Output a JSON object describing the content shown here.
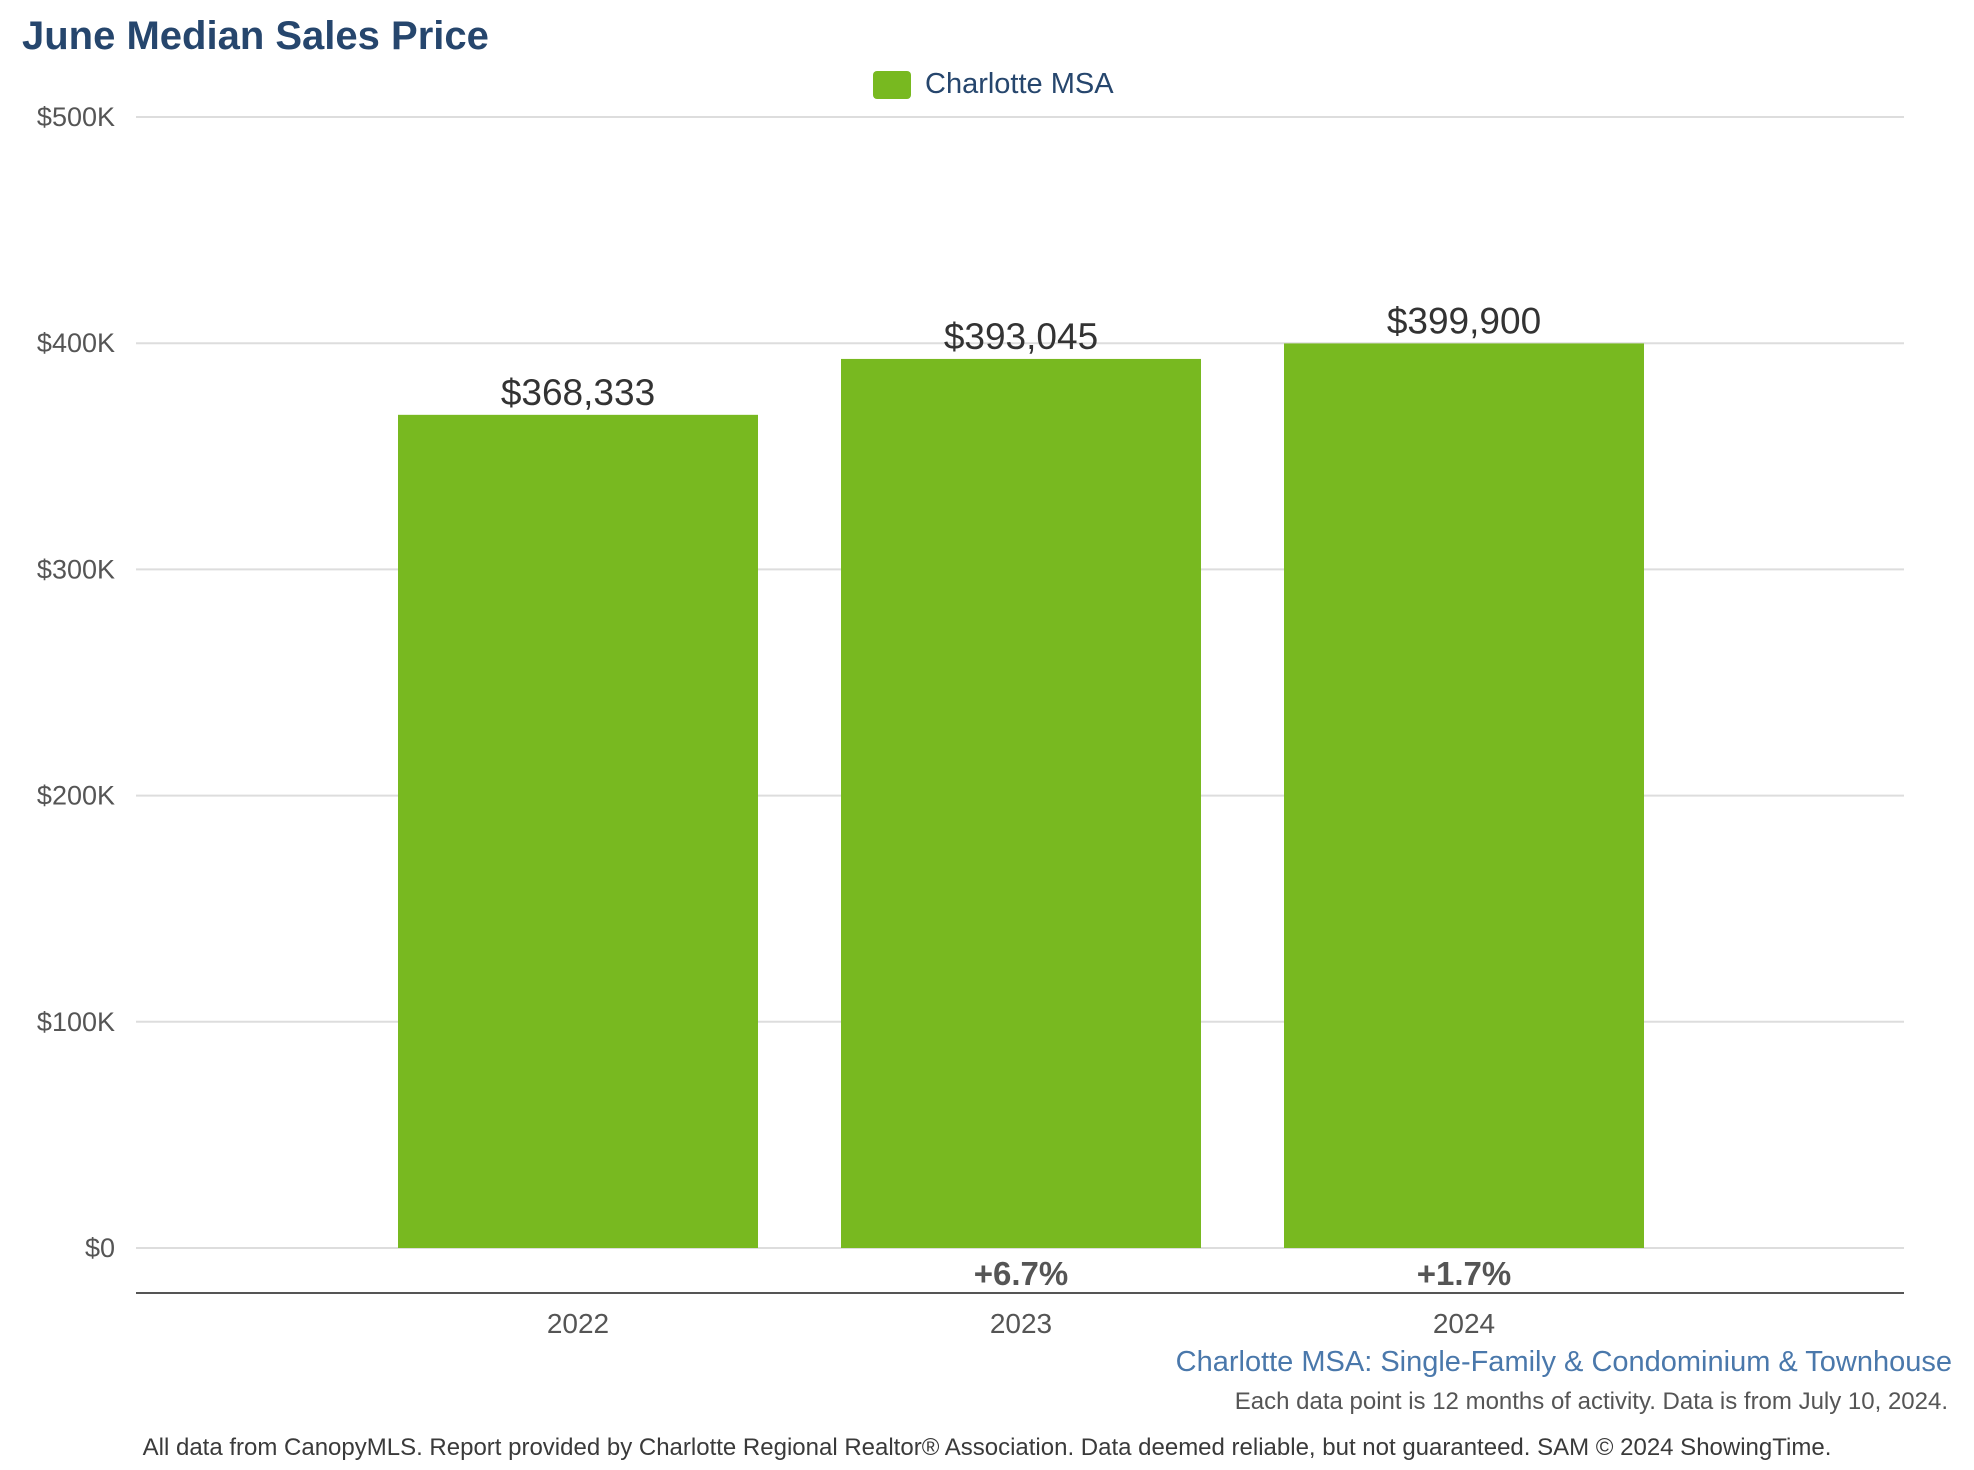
{
  "chart_data": {
    "type": "bar",
    "title": "June Median Sales Price",
    "categories": [
      "2022",
      "2023",
      "2024"
    ],
    "series": [
      {
        "name": "Charlotte MSA",
        "values": [
          368333,
          393045,
          399900
        ],
        "value_labels": [
          "$368,333",
          "$393,045",
          "$399,900"
        ],
        "color": "#78b920"
      }
    ],
    "change_labels": [
      "",
      "+6.7%",
      "+1.7%"
    ],
    "y_ticks": [
      0,
      100000,
      200000,
      300000,
      400000,
      500000
    ],
    "y_tick_labels": [
      "$0",
      "$100K",
      "$200K",
      "$300K",
      "$400K",
      "$500K"
    ],
    "ylim": [
      0,
      500000
    ],
    "grid": true,
    "legend_position": "top-center",
    "subtitle": "Charlotte MSA: Single-Family & Condominium & Townhouse",
    "note": "Each data point is 12 months of activity. Data is from July 10, 2024.",
    "footer": "All data from CanopyMLS. Report provided by Charlotte Regional Realtor® Association. Data deemed reliable, but not guaranteed. SAM © 2024 ShowingTime."
  },
  "colors": {
    "title": "#26466d",
    "grid": "#dddddd",
    "axis": "#555555",
    "value_text": "#333333",
    "tick_text": "#555555",
    "subtitle": "#4a78ab"
  }
}
